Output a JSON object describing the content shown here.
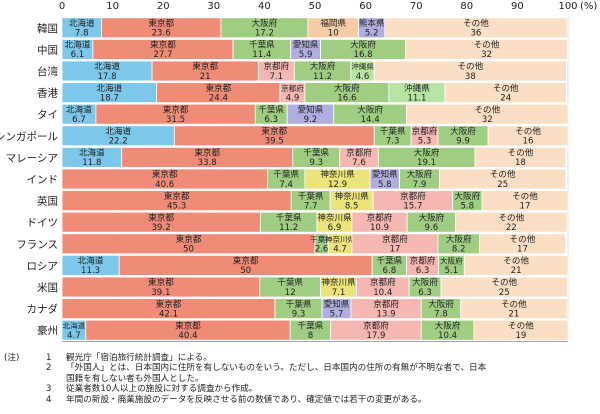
{
  "chart_data": {
    "type": "bar",
    "orientation": "horizontal",
    "stacked": true,
    "percent": true,
    "unit_label": "(%)",
    "xlim": [
      0,
      100
    ],
    "x_ticks": [
      0,
      10,
      20,
      30,
      40,
      50,
      60,
      70,
      80,
      90,
      100
    ],
    "grid": true,
    "categories": [
      "韓国",
      "中国",
      "台湾",
      "香港",
      "タイ",
      "シンガポール",
      "マレーシア",
      "インド",
      "英国",
      "ドイツ",
      "フランス",
      "ロシア",
      "米国",
      "カナダ",
      "豪州"
    ],
    "bars": [
      [
        {
          "p": "北海道",
          "v": 7.8
        },
        {
          "p": "東京都",
          "v": 23.6
        },
        {
          "p": "大阪府",
          "v": 17.2
        },
        {
          "p": "福岡県",
          "v": 10.0
        },
        {
          "p": "熊本県",
          "v": 5.2
        },
        {
          "p": "その他",
          "v": 36
        }
      ],
      [
        {
          "p": "北海道",
          "v": 6.1
        },
        {
          "p": "東京都",
          "v": 27.7
        },
        {
          "p": "千葉県",
          "v": 11.4
        },
        {
          "p": "愛知県",
          "v": 5.9
        },
        {
          "p": "大阪府",
          "v": 16.8
        },
        {
          "p": "その他",
          "v": 32
        }
      ],
      [
        {
          "p": "北海道",
          "v": 17.8
        },
        {
          "p": "東京都",
          "v": 21.0
        },
        {
          "p": "京都府",
          "v": 7.1
        },
        {
          "p": "大阪府",
          "v": 11.2
        },
        {
          "p": "沖縄県",
          "v": 4.6
        },
        {
          "p": "その他",
          "v": 38
        }
      ],
      [
        {
          "p": "北海道",
          "v": 18.7
        },
        {
          "p": "東京都",
          "v": 24.4
        },
        {
          "p": "京都府",
          "v": 4.9
        },
        {
          "p": "大阪府",
          "v": 16.6
        },
        {
          "p": "沖縄県",
          "v": 11.1
        },
        {
          "p": "その他",
          "v": 24
        }
      ],
      [
        {
          "p": "北海道",
          "v": 6.7
        },
        {
          "p": "東京都",
          "v": 31.5
        },
        {
          "p": "千葉県",
          "v": 6.3
        },
        {
          "p": "愛知県",
          "v": 9.2
        },
        {
          "p": "大阪府",
          "v": 14.4
        },
        {
          "p": "その他",
          "v": 32
        }
      ],
      [
        {
          "p": "北海道",
          "v": 22.2
        },
        {
          "p": "東京都",
          "v": 39.5
        },
        {
          "p": "千葉県",
          "v": 7.3
        },
        {
          "p": "京都府",
          "v": 5.3
        },
        {
          "p": "大阪府",
          "v": 9.9
        },
        {
          "p": "その他",
          "v": 16
        }
      ],
      [
        {
          "p": "北海道",
          "v": 11.8
        },
        {
          "p": "東京都",
          "v": 33.8
        },
        {
          "p": "千葉県",
          "v": 9.3
        },
        {
          "p": "京都府",
          "v": 7.6
        },
        {
          "p": "大阪府",
          "v": 19.1
        },
        {
          "p": "その他",
          "v": 18
        }
      ],
      [
        {
          "p": "東京都",
          "v": 40.6
        },
        {
          "p": "千葉県",
          "v": 7.4
        },
        {
          "p": "神奈川県",
          "v": 12.9
        },
        {
          "p": "愛知県",
          "v": 5.8
        },
        {
          "p": "大阪府",
          "v": 7.9
        },
        {
          "p": "その他",
          "v": 25
        }
      ],
      [
        {
          "p": "東京都",
          "v": 45.3
        },
        {
          "p": "千葉県",
          "v": 7.7
        },
        {
          "p": "神奈川県",
          "v": 8.5
        },
        {
          "p": "京都府",
          "v": 15.7
        },
        {
          "p": "大阪府",
          "v": 5.8
        },
        {
          "p": "その他",
          "v": 17
        }
      ],
      [
        {
          "p": "東京都",
          "v": 39.2
        },
        {
          "p": "千葉県",
          "v": 11.2
        },
        {
          "p": "神奈川県",
          "v": 6.9
        },
        {
          "p": "京都府",
          "v": 10.9
        },
        {
          "p": "大阪府",
          "v": 9.6
        },
        {
          "p": "その他",
          "v": 22
        }
      ],
      [
        {
          "p": "東京都",
          "v": 50.0
        },
        {
          "p": "千葉県",
          "v": 2.6
        },
        {
          "p": "神奈川県",
          "v": 4.7
        },
        {
          "p": "京都府",
          "v": 17.0
        },
        {
          "p": "大阪府",
          "v": 8.2
        },
        {
          "p": "その他",
          "v": 17
        }
      ],
      [
        {
          "p": "北海道",
          "v": 11.3
        },
        {
          "p": "東京都",
          "v": 50.0
        },
        {
          "p": "千葉県",
          "v": 6.8
        },
        {
          "p": "京都府",
          "v": 6.3
        },
        {
          "p": "大阪府",
          "v": 5.1
        },
        {
          "p": "その他",
          "v": 21
        }
      ],
      [
        {
          "p": "東京都",
          "v": 39.1
        },
        {
          "p": "千葉県",
          "v": 12.0
        },
        {
          "p": "神奈川県",
          "v": 7.1
        },
        {
          "p": "京都府",
          "v": 10.4
        },
        {
          "p": "大阪府",
          "v": 6.3
        },
        {
          "p": "その他",
          "v": 25
        }
      ],
      [
        {
          "p": "東京都",
          "v": 42.1
        },
        {
          "p": "千葉県",
          "v": 9.3
        },
        {
          "p": "愛知県",
          "v": 5.7
        },
        {
          "p": "京都府",
          "v": 13.9
        },
        {
          "p": "大阪府",
          "v": 7.8
        },
        {
          "p": "その他",
          "v": 21
        }
      ],
      [
        {
          "p": "北海道",
          "v": 4.7
        },
        {
          "p": "東京都",
          "v": 40.4
        },
        {
          "p": "千葉県",
          "v": 8.0
        },
        {
          "p": "京都府",
          "v": 17.9
        },
        {
          "p": "大阪府",
          "v": 10.4
        },
        {
          "p": "その他",
          "v": 19
        }
      ]
    ],
    "colors": {
      "北海道": "#7cc7ea",
      "東京都": "#f08b78",
      "千葉県": "#9fce82",
      "神奈川県": "#ece47a",
      "愛知県": "#b0aee0",
      "京都府": "#f5b7b1",
      "大阪府": "#9fce82",
      "福岡県": "#f6cca6",
      "熊本県": "#b0aee0",
      "沖縄県": "#b7e3a3",
      "その他": "#fbdfc4"
    }
  },
  "notes": {
    "label": "(注)",
    "items": [
      {
        "num": "1",
        "text": "観光庁「宿泊旅行統計調査」による。"
      },
      {
        "num": "2",
        "text": "「外国人」とは、日本国内に住所を有しないものをいう。ただし、日本国内の住所の有無が不明な者で、日本",
        "cont": "国籍を有しない者も外国人とした。"
      },
      {
        "num": "3",
        "text": "従業者数10人以上の施設に対する調査から作成。"
      },
      {
        "num": "4",
        "text": "年間の新設・廃業施設のデータを反映させる前の数値であり、確定値では若干の変更がある。"
      }
    ]
  }
}
